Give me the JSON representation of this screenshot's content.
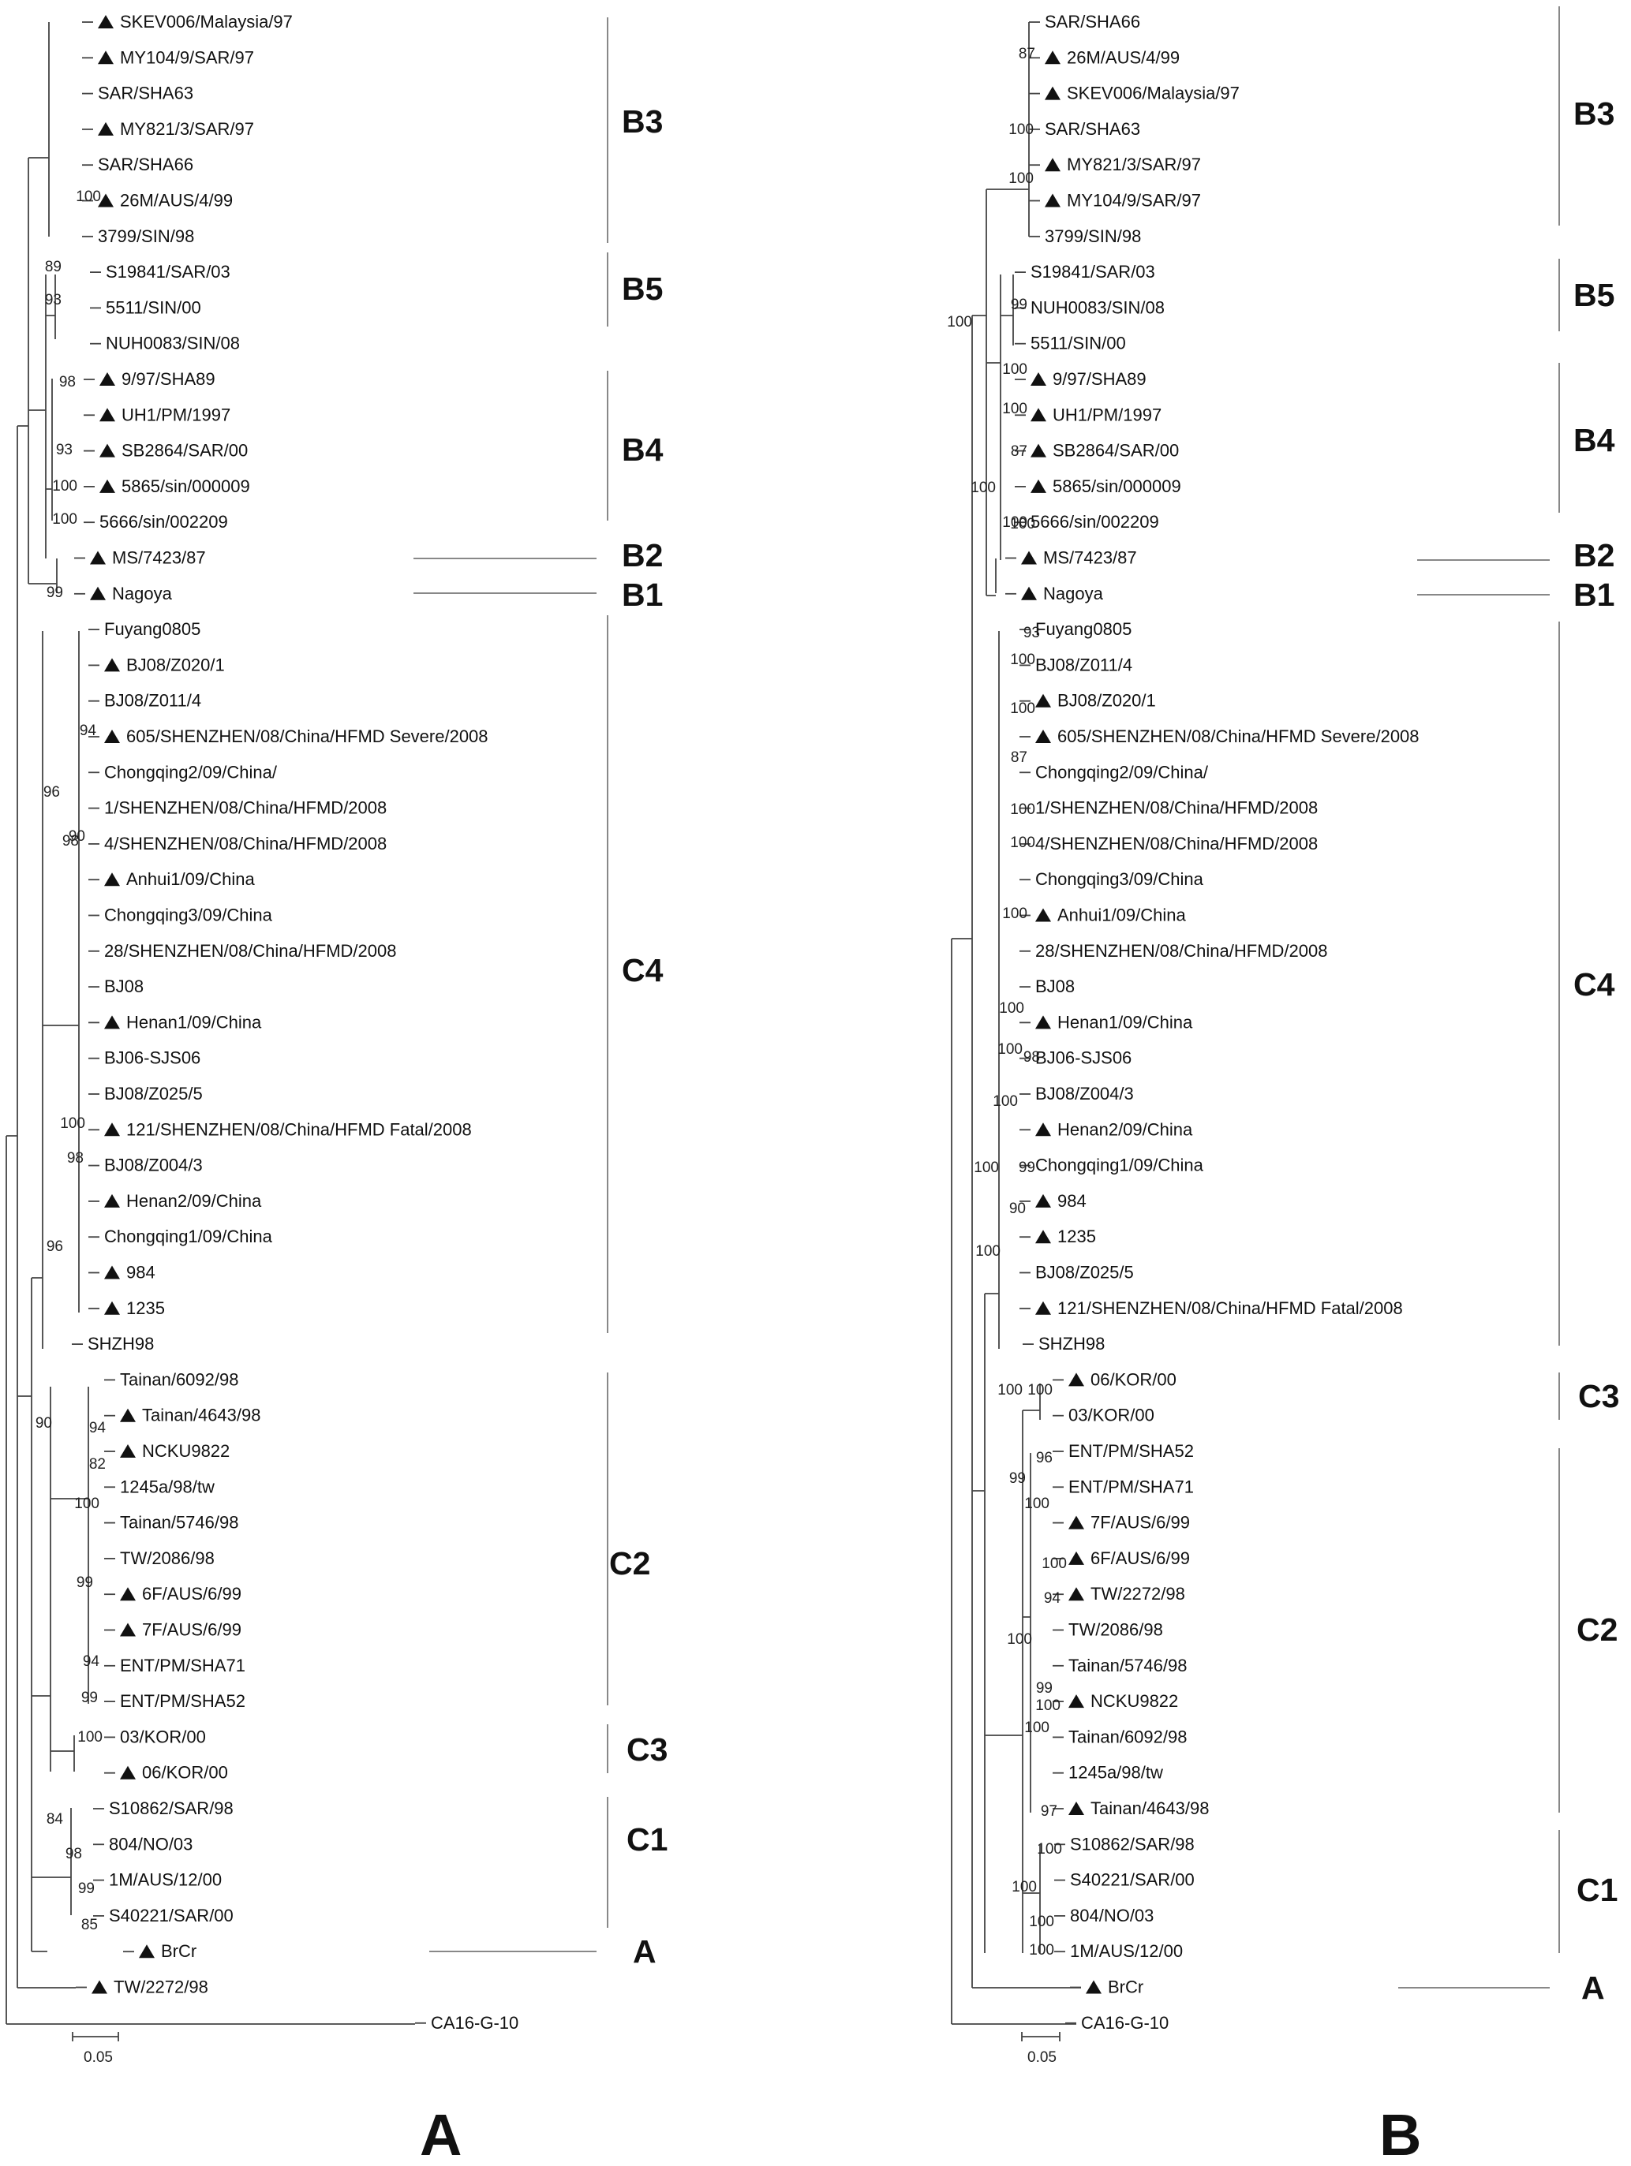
{
  "colors": {
    "text": "#111111",
    "branch": "#444444",
    "clade_bar": "#888888"
  },
  "marker": "filled-triangle",
  "panels": [
    {
      "label": "A",
      "scale_label": "0.05",
      "leaves": [
        {
          "name": "SKEV006/Malaysia/97",
          "mark": true
        },
        {
          "name": "MY104/9/SAR/97",
          "mark": true
        },
        {
          "name": "SAR/SHA63",
          "mark": false
        },
        {
          "name": "MY821/3/SAR/97",
          "mark": true
        },
        {
          "name": "SAR/SHA66",
          "mark": false
        },
        {
          "name": "26M/AUS/4/99",
          "mark": true
        },
        {
          "name": "3799/SIN/98",
          "mark": false
        },
        {
          "name": "S19841/SAR/03",
          "mark": false
        },
        {
          "name": "5511/SIN/00",
          "mark": false
        },
        {
          "name": "NUH0083/SIN/08",
          "mark": false
        },
        {
          "name": "9/97/SHA89",
          "mark": true
        },
        {
          "name": "UH1/PM/1997",
          "mark": true
        },
        {
          "name": "SB2864/SAR/00",
          "mark": true
        },
        {
          "name": "5865/sin/000009",
          "mark": true
        },
        {
          "name": "5666/sin/002209",
          "mark": false
        },
        {
          "name": "MS/7423/87",
          "mark": true
        },
        {
          "name": "Nagoya",
          "mark": true
        },
        {
          "name": "Fuyang0805",
          "mark": false
        },
        {
          "name": "BJ08/Z020/1",
          "mark": true
        },
        {
          "name": "BJ08/Z011/4",
          "mark": false
        },
        {
          "name": "605/SHENZHEN/08/China/HFMD Severe/2008",
          "mark": true
        },
        {
          "name": "Chongqing2/09/China/",
          "mark": false
        },
        {
          "name": "1/SHENZHEN/08/China/HFMD/2008",
          "mark": false
        },
        {
          "name": "4/SHENZHEN/08/China/HFMD/2008",
          "mark": false
        },
        {
          "name": "Anhui1/09/China",
          "mark": true
        },
        {
          "name": "Chongqing3/09/China",
          "mark": false
        },
        {
          "name": "28/SHENZHEN/08/China/HFMD/2008",
          "mark": false
        },
        {
          "name": "BJ08",
          "mark": false
        },
        {
          "name": "Henan1/09/China",
          "mark": true
        },
        {
          "name": "BJ06-SJS06",
          "mark": false
        },
        {
          "name": "BJ08/Z025/5",
          "mark": false
        },
        {
          "name": "121/SHENZHEN/08/China/HFMD Fatal/2008",
          "mark": true
        },
        {
          "name": "BJ08/Z004/3",
          "mark": false
        },
        {
          "name": "Henan2/09/China",
          "mark": true
        },
        {
          "name": "Chongqing1/09/China",
          "mark": false
        },
        {
          "name": "984",
          "mark": true
        },
        {
          "name": "1235",
          "mark": true
        },
        {
          "name": "SHZH98",
          "mark": false
        },
        {
          "name": "Tainan/6092/98",
          "mark": false
        },
        {
          "name": "Tainan/4643/98",
          "mark": true
        },
        {
          "name": "NCKU9822",
          "mark": true
        },
        {
          "name": "1245a/98/tw",
          "mark": false
        },
        {
          "name": "Tainan/5746/98",
          "mark": false
        },
        {
          "name": "TW/2086/98",
          "mark": false
        },
        {
          "name": "6F/AUS/6/99",
          "mark": true
        },
        {
          "name": "7F/AUS/6/99",
          "mark": true
        },
        {
          "name": "ENT/PM/SHA71",
          "mark": false
        },
        {
          "name": "ENT/PM/SHA52",
          "mark": false
        },
        {
          "name": "03/KOR/00",
          "mark": false
        },
        {
          "name": "06/KOR/00",
          "mark": true
        },
        {
          "name": "S10862/SAR/98",
          "mark": false
        },
        {
          "name": "804/NO/03",
          "mark": false
        },
        {
          "name": "1M/AUS/12/00",
          "mark": false
        },
        {
          "name": "S40221/SAR/00",
          "mark": false
        },
        {
          "name": "BrCr",
          "mark": true
        },
        {
          "name": "TW/2272/98",
          "mark": true
        },
        {
          "name": "CA16-G-10",
          "mark": false
        }
      ],
      "bootstraps": [
        "100",
        "89",
        "93",
        "98",
        "93",
        "100",
        "100",
        "99",
        "96",
        "94",
        "90",
        "98",
        "100",
        "98",
        "96",
        "94",
        "82",
        "100",
        "99",
        "94",
        "99",
        "100",
        "84",
        "98",
        "99",
        "85",
        "90"
      ],
      "clades": [
        {
          "label": "B3"
        },
        {
          "label": "B5"
        },
        {
          "label": "B4"
        },
        {
          "label": "B2"
        },
        {
          "label": "B1"
        },
        {
          "label": "C4"
        },
        {
          "label": "C2"
        },
        {
          "label": "C3"
        },
        {
          "label": "C1"
        },
        {
          "label": "A"
        }
      ]
    },
    {
      "label": "B",
      "scale_label": "0.05",
      "leaves": [
        {
          "name": "SAR/SHA66",
          "mark": false
        },
        {
          "name": "26M/AUS/4/99",
          "mark": true
        },
        {
          "name": "SKEV006/Malaysia/97",
          "mark": true
        },
        {
          "name": "SAR/SHA63",
          "mark": false
        },
        {
          "name": "MY821/3/SAR/97",
          "mark": true
        },
        {
          "name": "MY104/9/SAR/97",
          "mark": true
        },
        {
          "name": "3799/SIN/98",
          "mark": false
        },
        {
          "name": "S19841/SAR/03",
          "mark": false
        },
        {
          "name": "NUH0083/SIN/08",
          "mark": false
        },
        {
          "name": "5511/SIN/00",
          "mark": false
        },
        {
          "name": "9/97/SHA89",
          "mark": true
        },
        {
          "name": "UH1/PM/1997",
          "mark": true
        },
        {
          "name": "SB2864/SAR/00",
          "mark": true
        },
        {
          "name": "5865/sin/000009",
          "mark": true
        },
        {
          "name": "5666/sin/002209",
          "mark": false
        },
        {
          "name": "MS/7423/87",
          "mark": true
        },
        {
          "name": "Nagoya",
          "mark": true
        },
        {
          "name": "Fuyang0805",
          "mark": false
        },
        {
          "name": "BJ08/Z011/4",
          "mark": false
        },
        {
          "name": "BJ08/Z020/1",
          "mark": true
        },
        {
          "name": "605/SHENZHEN/08/China/HFMD Severe/2008",
          "mark": true
        },
        {
          "name": "Chongqing2/09/China/",
          "mark": false
        },
        {
          "name": "1/SHENZHEN/08/China/HFMD/2008",
          "mark": false
        },
        {
          "name": "4/SHENZHEN/08/China/HFMD/2008",
          "mark": false
        },
        {
          "name": "Chongqing3/09/China",
          "mark": false
        },
        {
          "name": "Anhui1/09/China",
          "mark": true
        },
        {
          "name": "28/SHENZHEN/08/China/HFMD/2008",
          "mark": false
        },
        {
          "name": "BJ08",
          "mark": false
        },
        {
          "name": "Henan1/09/China",
          "mark": true
        },
        {
          "name": "BJ06-SJS06",
          "mark": false
        },
        {
          "name": "BJ08/Z004/3",
          "mark": false
        },
        {
          "name": "Henan2/09/China",
          "mark": true
        },
        {
          "name": "Chongqing1/09/China",
          "mark": false
        },
        {
          "name": "984",
          "mark": true
        },
        {
          "name": "1235",
          "mark": true
        },
        {
          "name": "BJ08/Z025/5",
          "mark": false
        },
        {
          "name": "121/SHENZHEN/08/China/HFMD Fatal/2008",
          "mark": true
        },
        {
          "name": "SHZH98",
          "mark": false
        },
        {
          "name": "06/KOR/00",
          "mark": true
        },
        {
          "name": "03/KOR/00",
          "mark": false
        },
        {
          "name": "ENT/PM/SHA52",
          "mark": false
        },
        {
          "name": "ENT/PM/SHA71",
          "mark": false
        },
        {
          "name": "7F/AUS/6/99",
          "mark": true
        },
        {
          "name": "6F/AUS/6/99",
          "mark": true
        },
        {
          "name": "TW/2272/98",
          "mark": true
        },
        {
          "name": "TW/2086/98",
          "mark": false
        },
        {
          "name": "Tainan/5746/98",
          "mark": false
        },
        {
          "name": "NCKU9822",
          "mark": true
        },
        {
          "name": "Tainan/6092/98",
          "mark": false
        },
        {
          "name": "1245a/98/tw",
          "mark": false
        },
        {
          "name": "Tainan/4643/98",
          "mark": true
        },
        {
          "name": "S10862/SAR/98",
          "mark": false
        },
        {
          "name": "S40221/SAR/00",
          "mark": false
        },
        {
          "name": "804/NO/03",
          "mark": false
        },
        {
          "name": "1M/AUS/12/00",
          "mark": false
        },
        {
          "name": "BrCr",
          "mark": true
        },
        {
          "name": "CA16-G-10",
          "mark": false
        }
      ],
      "bootstraps": [
        "87",
        "100",
        "100",
        "100",
        "99",
        "100",
        "100",
        "87",
        "100",
        "100",
        "100",
        "93",
        "100",
        "100",
        "87",
        "100",
        "100",
        "100",
        "100",
        "100",
        "98",
        "100",
        "99",
        "90",
        "100",
        "100",
        "100",
        "100",
        "96",
        "99",
        "100",
        "100",
        "94",
        "100",
        "99",
        "100",
        "100",
        "97",
        "100",
        "100",
        "100",
        "100"
      ],
      "clades": [
        {
          "label": "B3"
        },
        {
          "label": "B5"
        },
        {
          "label": "B4"
        },
        {
          "label": "B2"
        },
        {
          "label": "B1"
        },
        {
          "label": "C4"
        },
        {
          "label": "C3"
        },
        {
          "label": "C2"
        },
        {
          "label": "C1"
        },
        {
          "label": "A"
        }
      ]
    }
  ]
}
